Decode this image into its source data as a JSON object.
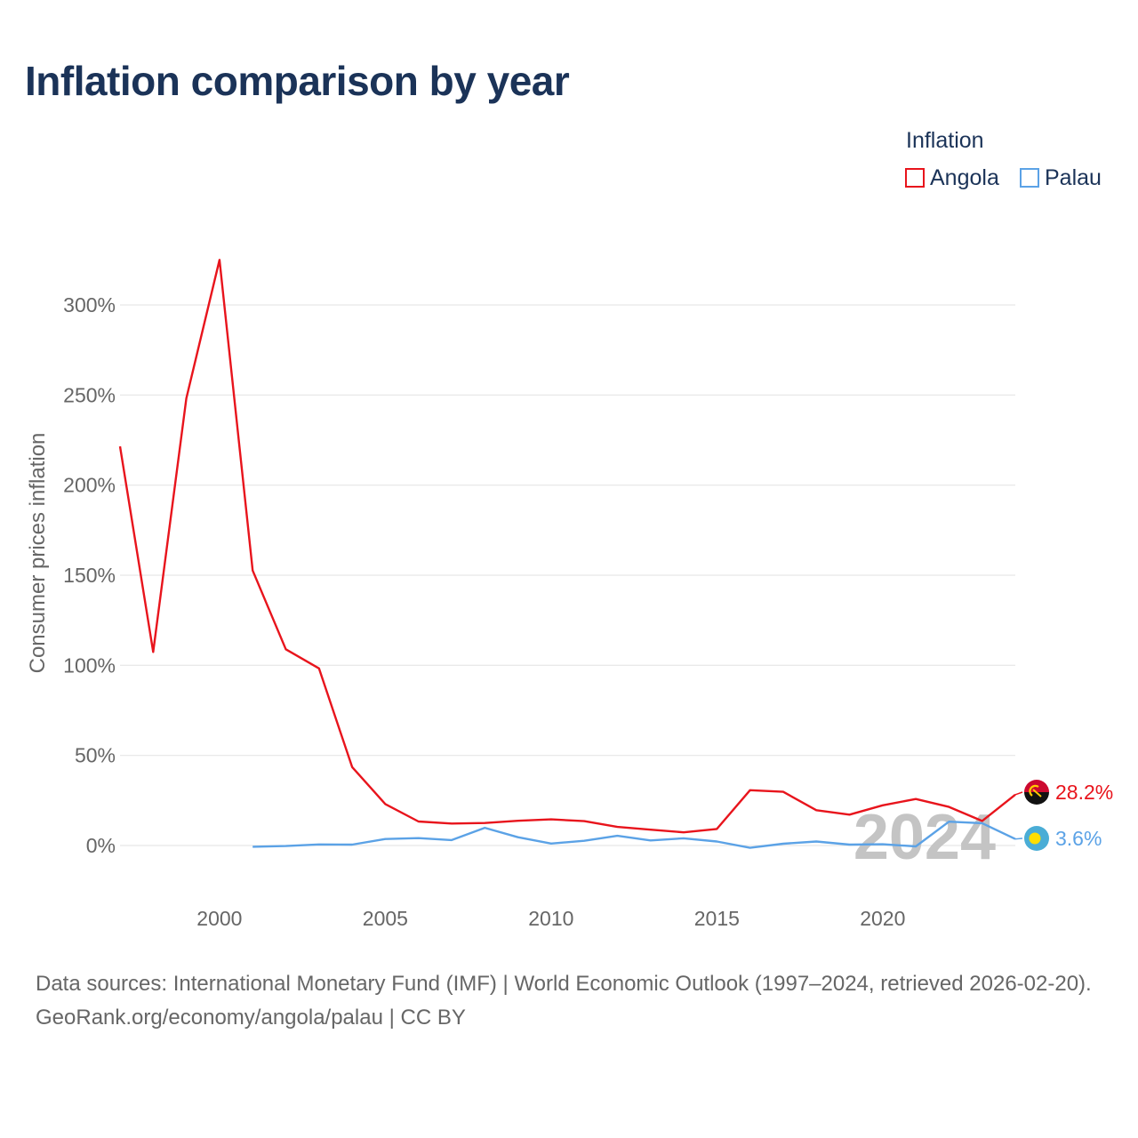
{
  "title": "Inflation comparison by year",
  "legend": {
    "title": "Inflation",
    "items": [
      {
        "name": "Angola",
        "color": "#e8141c"
      },
      {
        "name": "Palau",
        "color": "#5ba2e6"
      }
    ]
  },
  "footer": {
    "sources": "Data sources: International Monetary Fund (IMF) | World Economic Outlook (1997–2024, retrieved 2026-02-20).",
    "credit": "GeoRank.org/economy/angola/palau | CC BY"
  },
  "chart_data": {
    "type": "line",
    "title": "Inflation comparison by year",
    "xlabel": "",
    "ylabel": "Consumer prices inflation",
    "xlim": [
      1997,
      2024
    ],
    "ylim": [
      -20,
      320
    ],
    "yticks": [
      0,
      50,
      100,
      150,
      200,
      250,
      300
    ],
    "ytick_labels": [
      "0%",
      "50%",
      "100%",
      "150%",
      "200%",
      "250%",
      "300%"
    ],
    "xticks": [
      2000,
      2005,
      2010,
      2015,
      2020
    ],
    "xtick_labels": [
      "2000",
      "2005",
      "2010",
      "2015",
      "2020"
    ],
    "grid": true,
    "watermark_year": "2024",
    "series": [
      {
        "name": "Angola",
        "color": "#e8141c",
        "end_label": "28.2%",
        "flag": "angola-flag-icon",
        "x": [
          1997,
          1998,
          1999,
          2000,
          2001,
          2002,
          2003,
          2004,
          2005,
          2006,
          2007,
          2008,
          2009,
          2010,
          2011,
          2012,
          2013,
          2014,
          2015,
          2016,
          2017,
          2018,
          2019,
          2020,
          2021,
          2022,
          2023,
          2024
        ],
        "y": [
          221.5,
          107.4,
          248.2,
          325.0,
          152.6,
          108.9,
          98.3,
          43.5,
          23.0,
          13.3,
          12.2,
          12.5,
          13.7,
          14.5,
          13.5,
          10.3,
          8.8,
          7.3,
          9.2,
          30.7,
          29.8,
          19.6,
          17.1,
          22.3,
          25.8,
          21.4,
          13.6,
          28.2
        ]
      },
      {
        "name": "Palau",
        "color": "#5ba2e6",
        "end_label": "3.6%",
        "flag": "palau-flag-icon",
        "x": [
          2001,
          2002,
          2003,
          2004,
          2005,
          2006,
          2007,
          2008,
          2009,
          2010,
          2011,
          2012,
          2013,
          2014,
          2015,
          2016,
          2017,
          2018,
          2019,
          2020,
          2021,
          2022,
          2023,
          2024
        ],
        "y": [
          -0.7,
          -0.3,
          0.6,
          0.5,
          3.6,
          4.1,
          3.0,
          9.8,
          4.6,
          1.1,
          2.6,
          5.4,
          2.8,
          4.0,
          2.2,
          -1.3,
          1.0,
          2.2,
          0.5,
          0.7,
          -0.5,
          13.2,
          12.4,
          3.6
        ]
      }
    ]
  }
}
